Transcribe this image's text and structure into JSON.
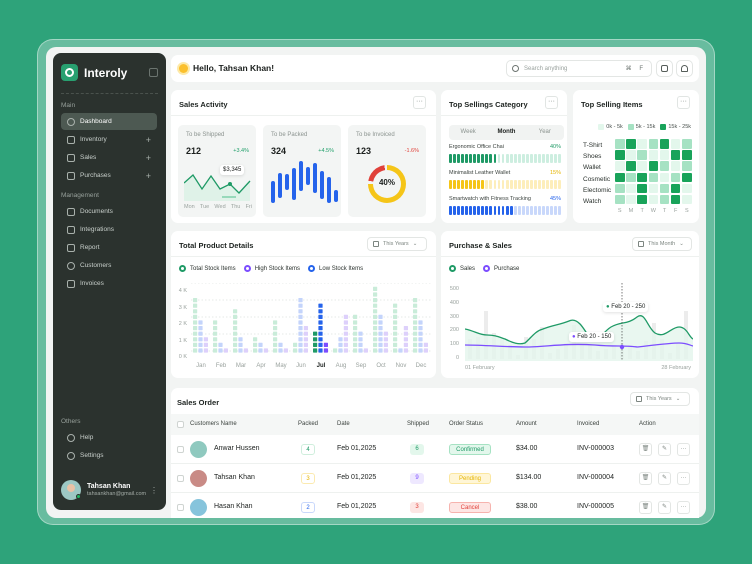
{
  "app": {
    "name": "Interoly"
  },
  "sidebar": {
    "sections": [
      {
        "title": "Main",
        "items": [
          {
            "label": "Dashboard",
            "icon": "gauge-icon",
            "active": true
          },
          {
            "label": "Inventory",
            "icon": "box-icon",
            "expandable": true
          },
          {
            "label": "Sales",
            "icon": "cart-icon",
            "expandable": true
          },
          {
            "label": "Purchases",
            "icon": "bag-icon",
            "expandable": true
          }
        ]
      },
      {
        "title": "Management",
        "items": [
          {
            "label": "Documents",
            "icon": "document-icon"
          },
          {
            "label": "Integrations",
            "icon": "sliders-icon"
          },
          {
            "label": "Report",
            "icon": "chart-icon"
          },
          {
            "label": "Customers",
            "icon": "users-icon"
          },
          {
            "label": "Invoices",
            "icon": "invoice-icon"
          }
        ]
      },
      {
        "title": "Others",
        "items": [
          {
            "label": "Help",
            "icon": "help-icon"
          },
          {
            "label": "Settings",
            "icon": "gear-icon"
          }
        ]
      }
    ],
    "user": {
      "name": "Tahsan Khan",
      "email": "tahsankhan@gmail.com"
    }
  },
  "header": {
    "greeting": "Hello, Tahsan Khan!",
    "search_placeholder": "Search anything",
    "shortcut": "⌘ F"
  },
  "sales_activity": {
    "title": "Sales Activity",
    "menu": "···",
    "cards": [
      {
        "label": "To be Shipped",
        "value": "212",
        "change": "+3.4%",
        "trend": "up",
        "tooltip": "$3,345",
        "days": [
          "Mon",
          "Tue",
          "Wed",
          "Thu",
          "Fri"
        ]
      },
      {
        "label": "To be Packed",
        "value": "324",
        "change": "+4.5%",
        "trend": "up"
      },
      {
        "label": "To be Invoiced",
        "value": "123",
        "change": "-1.6%",
        "trend": "down",
        "donut": "40%"
      }
    ]
  },
  "top_category": {
    "title": "Top Sellings Category",
    "menu": "···",
    "tabs": [
      "Week",
      "Month",
      "Year"
    ],
    "active_tab": "Month",
    "items": [
      {
        "name": "Ergonomic Office Chai",
        "pct": "40%",
        "fill": 12,
        "color": "#1f9a66",
        "light": "#cdeee0"
      },
      {
        "name": "Minimalist Leather Wallet",
        "pct": "15%",
        "fill": 9,
        "color": "#f5c518",
        "light": "#fdeebb"
      },
      {
        "name": "Smartwatch with Fitness Tracking",
        "pct": "45%",
        "fill": 16,
        "color": "#2563eb",
        "light": "#c9d8fb"
      }
    ]
  },
  "top_items": {
    "title": "Top Selling Items",
    "menu": "···",
    "legend": [
      "0k - 5k",
      "5k - 15k",
      "15k - 25k"
    ],
    "rows": [
      "T-Shirt",
      "Shoes",
      "Wallet",
      "Cosmetic",
      "Electomic",
      "Watch"
    ],
    "days": [
      "S",
      "M",
      "T",
      "W",
      "T",
      "F",
      "S"
    ],
    "grid": [
      [
        1,
        2,
        0,
        1,
        2,
        0,
        1
      ],
      [
        2,
        0,
        1,
        0,
        0,
        2,
        2
      ],
      [
        0,
        2,
        0,
        2,
        1,
        0,
        1
      ],
      [
        2,
        1,
        2,
        1,
        0,
        1,
        2
      ],
      [
        1,
        0,
        2,
        0,
        1,
        2,
        0
      ],
      [
        1,
        0,
        2,
        0,
        1,
        2,
        0
      ]
    ]
  },
  "product_details": {
    "title": "Total Product Details",
    "filter": "This Years",
    "legend": [
      "Total Stock Items",
      "High Stock Items",
      "Low Stock Items"
    ]
  },
  "purchase_sales": {
    "title": "Purchase & Sales",
    "filter": "This Month",
    "legend": [
      "Sales",
      "Purchase"
    ],
    "tooltip_sales": "Feb 20 - 250",
    "tooltip_purchase": "Feb 20 - 150",
    "x_start": "01 February",
    "x_end": "28 February"
  },
  "chart_data": [
    {
      "type": "bar",
      "title": "Total Product Details",
      "categories": [
        "Jan",
        "Feb",
        "Mar",
        "Apr",
        "May",
        "Jun",
        "Jul",
        "Aug",
        "Sep",
        "Oct",
        "Nov",
        "Dec"
      ],
      "series": [
        {
          "name": "Total Stock Items",
          "values": [
            3300,
            2000,
            2700,
            1000,
            2000,
            700,
            1300,
            300,
            2300,
            4000,
            3000,
            3300
          ]
        },
        {
          "name": "High Stock Items",
          "values": [
            2000,
            700,
            1000,
            500,
            700,
            3300,
            3000,
            1000,
            1300,
            2300,
            400,
            2000
          ]
        },
        {
          "name": "Low Stock Items",
          "values": [
            1000,
            200,
            400,
            200,
            200,
            1700,
            500,
            2300,
            400,
            1300,
            1700,
            700
          ]
        }
      ],
      "ylabel": "",
      "yticks": [
        "0 K",
        "1 K",
        "2 K",
        "3 K",
        "4 K"
      ],
      "ylim": [
        0,
        4000
      ],
      "highlighted": "Jul"
    },
    {
      "type": "line",
      "title": "Purchase & Sales",
      "x": [
        "01 February",
        "28 February"
      ],
      "series": [
        {
          "name": "Sales",
          "values": [
            250,
            210,
            200,
            150,
            250,
            260,
            300,
            150,
            290,
            340,
            360,
            220,
            300,
            200
          ]
        },
        {
          "name": "Purchase",
          "values": [
            120,
            115,
            110,
            105,
            125,
            125,
            120,
            110,
            115,
            120,
            120,
            130,
            140,
            120
          ]
        }
      ],
      "yticks": [
        0,
        100,
        200,
        300,
        400,
        500
      ],
      "ylim": [
        0,
        500
      ],
      "annotations": [
        "Feb 20 - 250",
        "Feb 20 - 150"
      ]
    }
  ],
  "sales_order": {
    "title": "Sales Order",
    "filter": "This Years",
    "columns": [
      "Customers Name",
      "Packed",
      "Date",
      "Shipped",
      "Order Status",
      "Amount",
      "Invoiced",
      "Action"
    ],
    "rows": [
      {
        "name": "Anwar Hussen",
        "packed": "4",
        "date": "Feb 01,2025",
        "shipped": "6",
        "status": "Confirmed",
        "amount": "$34.00",
        "invoice": "INV-000003"
      },
      {
        "name": "Tahsan Khan",
        "packed": "3",
        "date": "Feb 01,2025",
        "shipped": "9",
        "status": "Pending",
        "amount": "$134.00",
        "invoice": "INV-000004"
      },
      {
        "name": "Hasan Khan",
        "packed": "2",
        "date": "Feb 01,2025",
        "shipped": "3",
        "status": "Cancel",
        "amount": "$38.00",
        "invoice": "INV-000005"
      }
    ]
  },
  "colors": {
    "brand": "#2ea37a",
    "sidebar": "#2b322e",
    "green": "#1f9a66",
    "purple": "#7c4dff",
    "blue": "#2563eb",
    "yellow": "#f5c518",
    "red": "#e0413a"
  }
}
